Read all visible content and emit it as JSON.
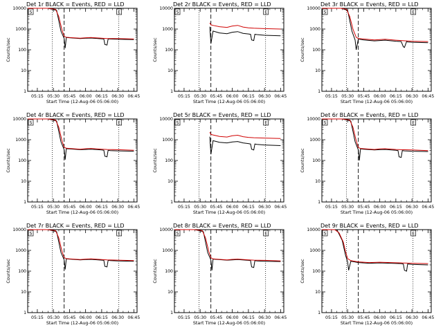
{
  "chart_data": [
    {
      "type": "line",
      "title": "Det 1r BLACK = Events, RED = LLD",
      "xlabel": "Start Time (12-Aug-06 05:06:00)",
      "ylabel": "Counts/sec",
      "yscale": "log",
      "ylim": [
        1,
        10000
      ],
      "xticks": [
        "05:15",
        "05:30",
        "05:45",
        "06:00",
        "06:15",
        "06:30",
        "06:45"
      ],
      "yticks": [
        "1",
        "10",
        "100",
        "1000",
        "10000"
      ],
      "markers": [
        {
          "label": "S",
          "time": "05:06"
        },
        {
          "label": "E",
          "time": "06:31"
        }
      ],
      "series": [
        {
          "color": "#000000",
          "x": [
            "05:06",
            "05:25",
            "05:33",
            "05:37",
            "05:40",
            "05:41",
            "05:42",
            "05:45",
            "05:55",
            "06:00",
            "06:05",
            "06:15",
            "06:17",
            "06:18",
            "06:20",
            "06:21",
            "06:23",
            "06:30",
            "06:45"
          ],
          "y": [
            10000,
            10000,
            8000,
            800,
            350,
            120,
            390,
            380,
            350,
            360,
            370,
            340,
            330,
            180,
            170,
            330,
            330,
            320,
            310
          ]
        },
        {
          "color": "#d00000",
          "x": [
            "05:06",
            "05:25",
            "05:32",
            "05:35",
            "05:38",
            "05:40",
            "05:42",
            "05:45",
            "05:55",
            "06:00",
            "06:05",
            "06:15",
            "06:20",
            "06:30",
            "06:45"
          ],
          "y": [
            10000,
            10000,
            9000,
            4000,
            900,
            450,
            400,
            390,
            360,
            380,
            390,
            360,
            350,
            350,
            330
          ]
        }
      ]
    },
    {
      "type": "line",
      "title": "Det 2r BLACK = Events, RED = LLD",
      "xlabel": "Start Time (12-Aug-06 05:06:00)",
      "ylabel": "Counts/sec",
      "yscale": "log",
      "ylim": [
        1,
        10000
      ],
      "xticks": [
        "05:15",
        "05:30",
        "05:45",
        "06:00",
        "06:15",
        "06:30",
        "06:45"
      ],
      "yticks": [
        "1",
        "10",
        "100",
        "1000",
        "10000"
      ],
      "markers": [
        {
          "label": "S",
          "time": "05:06"
        },
        {
          "label": "E",
          "time": "06:31"
        }
      ],
      "series": [
        {
          "color": "#000000",
          "x": [
            "05:39",
            "05:40",
            "05:42",
            "05:48",
            "05:55",
            "06:00",
            "06:05",
            "06:10",
            "06:15",
            "06:17",
            "06:18",
            "06:20",
            "06:21",
            "06:23",
            "06:30",
            "06:45"
          ],
          "y": [
            1300,
            200,
            800,
            650,
            600,
            700,
            750,
            620,
            580,
            560,
            300,
            280,
            560,
            540,
            500,
            470
          ]
        },
        {
          "color": "#d00000",
          "x": [
            "05:39",
            "05:40",
            "05:42",
            "05:48",
            "05:55",
            "06:00",
            "06:05",
            "06:10",
            "06:15",
            "06:20",
            "06:30",
            "06:45"
          ],
          "y": [
            2000,
            1600,
            1500,
            1300,
            1200,
            1400,
            1500,
            1250,
            1150,
            1100,
            1050,
            1000
          ]
        }
      ]
    },
    {
      "type": "line",
      "title": "Det 3r BLACK = Events, RED = LLD",
      "xlabel": "Start Time (12-Aug-06 05:06:00)",
      "ylabel": "Counts/sec",
      "yscale": "log",
      "ylim": [
        1,
        10000
      ],
      "xticks": [
        "05:15",
        "05:30",
        "05:45",
        "06:00",
        "06:15",
        "06:30",
        "06:45"
      ],
      "yticks": [
        "1",
        "10",
        "100",
        "1000",
        "10000"
      ],
      "markers": [
        {
          "label": "S",
          "time": "05:06"
        },
        {
          "label": "E",
          "time": "06:31"
        }
      ],
      "series": [
        {
          "color": "#000000",
          "x": [
            "05:06",
            "05:24",
            "05:30",
            "05:34",
            "05:37",
            "05:38",
            "05:40",
            "05:45",
            "05:55",
            "06:00",
            "06:05",
            "06:15",
            "06:20",
            "06:22",
            "06:23",
            "06:25",
            "06:26",
            "06:30",
            "06:45"
          ],
          "y": [
            10000,
            10000,
            8000,
            800,
            300,
            100,
            330,
            300,
            270,
            280,
            290,
            260,
            250,
            140,
            130,
            250,
            240,
            230,
            220
          ]
        },
        {
          "color": "#d00000",
          "x": [
            "05:06",
            "05:24",
            "05:29",
            "05:32",
            "05:35",
            "05:38",
            "05:40",
            "05:45",
            "05:55",
            "06:00",
            "06:05",
            "06:15",
            "06:25",
            "06:30",
            "06:45"
          ],
          "y": [
            10000,
            10000,
            9000,
            4000,
            1000,
            400,
            350,
            330,
            300,
            310,
            320,
            290,
            270,
            260,
            250
          ]
        }
      ]
    },
    {
      "type": "line",
      "title": "Det 4r BLACK = Events, RED = LLD",
      "xlabel": "Start Time (12-Aug-06 05:06:00)",
      "ylabel": "Counts/sec",
      "yscale": "log",
      "ylim": [
        1,
        10000
      ],
      "xticks": [
        "05:15",
        "05:30",
        "05:45",
        "06:00",
        "06:15",
        "06:30",
        "06:45"
      ],
      "yticks": [
        "1",
        "10",
        "100",
        "1000",
        "10000"
      ],
      "markers": [
        {
          "label": "S",
          "time": "05:06"
        },
        {
          "label": "E",
          "time": "06:31"
        }
      ],
      "series": [
        {
          "color": "#000000",
          "x": [
            "05:06",
            "05:25",
            "05:33",
            "05:37",
            "05:40",
            "05:41",
            "05:42",
            "05:45",
            "05:55",
            "06:00",
            "06:05",
            "06:15",
            "06:17",
            "06:18",
            "06:20",
            "06:21",
            "06:23",
            "06:30",
            "06:45"
          ],
          "y": [
            10000,
            10000,
            8000,
            800,
            330,
            110,
            370,
            360,
            330,
            340,
            350,
            320,
            310,
            160,
            150,
            310,
            300,
            290,
            280
          ]
        },
        {
          "color": "#d00000",
          "x": [
            "05:06",
            "05:25",
            "05:32",
            "05:35",
            "05:38",
            "05:40",
            "05:42",
            "05:45",
            "05:55",
            "06:00",
            "06:05",
            "06:15",
            "06:20",
            "06:30",
            "06:45"
          ],
          "y": [
            10000,
            10000,
            9000,
            4000,
            900,
            430,
            390,
            380,
            350,
            370,
            380,
            350,
            340,
            330,
            310
          ]
        }
      ]
    },
    {
      "type": "line",
      "title": "Det 5r BLACK = Events, RED = LLD",
      "xlabel": "Start Time (12-Aug-06 05:06:00)",
      "ylabel": "Counts/sec",
      "yscale": "log",
      "ylim": [
        1,
        10000
      ],
      "xticks": [
        "05:15",
        "05:30",
        "05:45",
        "06:00",
        "06:15",
        "06:30",
        "06:45"
      ],
      "yticks": [
        "1",
        "10",
        "100",
        "1000",
        "10000"
      ],
      "markers": [
        {
          "label": "S",
          "time": "05:06"
        },
        {
          "label": "E",
          "time": "06:31"
        }
      ],
      "series": [
        {
          "color": "#000000",
          "x": [
            "05:39",
            "05:40",
            "05:42",
            "05:48",
            "05:55",
            "06:00",
            "06:05",
            "06:10",
            "06:15",
            "06:17",
            "06:18",
            "06:20",
            "06:21",
            "06:23",
            "06:30",
            "06:45"
          ],
          "y": [
            1400,
            200,
            900,
            750,
            700,
            780,
            820,
            700,
            650,
            620,
            350,
            320,
            620,
            600,
            560,
            520
          ]
        },
        {
          "color": "#d00000",
          "x": [
            "05:39",
            "05:40",
            "05:42",
            "05:48",
            "05:55",
            "06:00",
            "06:05",
            "06:10",
            "06:15",
            "06:20",
            "06:30",
            "06:45"
          ],
          "y": [
            2300,
            1800,
            1700,
            1450,
            1350,
            1550,
            1650,
            1400,
            1300,
            1250,
            1200,
            1150
          ]
        }
      ]
    },
    {
      "type": "line",
      "title": "Det 6r BLACK = Events, RED = LLD",
      "xlabel": "Start Time (12-Aug-06 05:06:00)",
      "ylabel": "Counts/sec",
      "yscale": "log",
      "ylim": [
        1,
        10000
      ],
      "xticks": [
        "05:15",
        "05:30",
        "05:45",
        "06:00",
        "06:15",
        "06:30",
        "06:45"
      ],
      "yticks": [
        "1",
        "10",
        "100",
        "1000",
        "10000"
      ],
      "markers": [
        {
          "label": "S",
          "time": "05:06"
        },
        {
          "label": "E",
          "time": "06:31"
        }
      ],
      "series": [
        {
          "color": "#000000",
          "x": [
            "05:06",
            "05:25",
            "05:33",
            "05:37",
            "05:40",
            "05:41",
            "05:42",
            "05:45",
            "05:55",
            "06:00",
            "06:05",
            "06:15",
            "06:17",
            "06:18",
            "06:20",
            "06:21",
            "06:23",
            "06:30",
            "06:45"
          ],
          "y": [
            10000,
            10000,
            8000,
            800,
            320,
            100,
            360,
            350,
            320,
            330,
            340,
            310,
            300,
            150,
            140,
            300,
            290,
            280,
            270
          ]
        },
        {
          "color": "#d00000",
          "x": [
            "05:06",
            "05:25",
            "05:32",
            "05:35",
            "05:38",
            "05:40",
            "05:42",
            "05:45",
            "05:55",
            "06:00",
            "06:05",
            "06:15",
            "06:20",
            "06:30",
            "06:45"
          ],
          "y": [
            10000,
            10000,
            9000,
            4000,
            900,
            420,
            380,
            370,
            340,
            360,
            370,
            340,
            330,
            320,
            300
          ]
        }
      ]
    },
    {
      "type": "line",
      "title": "Det 7r BLACK = Events, RED = LLD",
      "xlabel": "Start Time (12-Aug-06 05:06:00)",
      "ylabel": "Counts/sec",
      "yscale": "log",
      "ylim": [
        1,
        10000
      ],
      "xticks": [
        "05:15",
        "05:30",
        "05:45",
        "06:00",
        "06:15",
        "06:30",
        "06:45"
      ],
      "yticks": [
        "1",
        "10",
        "100",
        "1000",
        "10000"
      ],
      "markers": [
        {
          "label": "S",
          "time": "05:06"
        },
        {
          "label": "E",
          "time": "06:31"
        }
      ],
      "series": [
        {
          "color": "#000000",
          "x": [
            "05:06",
            "05:25",
            "05:33",
            "05:37",
            "05:40",
            "05:41",
            "05:42",
            "05:45",
            "05:55",
            "06:00",
            "06:05",
            "06:15",
            "06:17",
            "06:18",
            "06:20",
            "06:21",
            "06:23",
            "06:30",
            "06:45"
          ],
          "y": [
            10000,
            10000,
            8000,
            800,
            350,
            120,
            390,
            380,
            350,
            360,
            370,
            340,
            330,
            170,
            160,
            330,
            320,
            310,
            300
          ]
        },
        {
          "color": "#d00000",
          "x": [
            "05:06",
            "05:25",
            "05:32",
            "05:35",
            "05:38",
            "05:40",
            "05:42",
            "05:45",
            "05:55",
            "06:00",
            "06:05",
            "06:15",
            "06:20",
            "06:30",
            "06:45"
          ],
          "y": [
            10000,
            10000,
            9000,
            4000,
            900,
            450,
            400,
            390,
            360,
            380,
            390,
            360,
            350,
            340,
            320
          ]
        }
      ]
    },
    {
      "type": "line",
      "title": "Det 8r BLACK = Events, RED = LLD",
      "xlabel": "Start Time (12-Aug-06 05:06:00)",
      "ylabel": "Counts/sec",
      "yscale": "log",
      "ylim": [
        1,
        10000
      ],
      "xticks": [
        "05:15",
        "05:30",
        "05:45",
        "06:00",
        "06:15",
        "06:30",
        "06:45"
      ],
      "yticks": [
        "1",
        "10",
        "100",
        "1000",
        "10000"
      ],
      "markers": [
        {
          "label": "S",
          "time": "05:06"
        },
        {
          "label": "E",
          "time": "06:31"
        }
      ],
      "series": [
        {
          "color": "#000000",
          "x": [
            "05:06",
            "05:25",
            "05:33",
            "05:37",
            "05:40",
            "05:41",
            "05:42",
            "05:45",
            "05:55",
            "06:00",
            "06:05",
            "06:15",
            "06:17",
            "06:18",
            "06:20",
            "06:21",
            "06:23",
            "06:30",
            "06:45"
          ],
          "y": [
            10000,
            10000,
            8000,
            800,
            340,
            110,
            380,
            370,
            340,
            350,
            360,
            330,
            320,
            160,
            150,
            320,
            310,
            300,
            290
          ]
        },
        {
          "color": "#d00000",
          "x": [
            "05:06",
            "05:25",
            "05:32",
            "05:35",
            "05:38",
            "05:40",
            "05:42",
            "05:45",
            "05:55",
            "06:00",
            "06:05",
            "06:15",
            "06:20",
            "06:30",
            "06:45"
          ],
          "y": [
            10000,
            10000,
            9000,
            4000,
            900,
            440,
            390,
            380,
            350,
            370,
            380,
            350,
            340,
            330,
            310
          ]
        }
      ]
    },
    {
      "type": "line",
      "title": "Det 9r BLACK = Events, RED = LLD",
      "xlabel": "Start Time (12-Aug-06 05:06:00)",
      "ylabel": "Counts/sec",
      "yscale": "log",
      "ylim": [
        1,
        10000
      ],
      "xticks": [
        "05:15",
        "05:30",
        "05:45",
        "06:00",
        "06:15",
        "06:30",
        "06:45"
      ],
      "yticks": [
        "1",
        "10",
        "100",
        "1000",
        "10000"
      ],
      "markers": [
        {
          "label": "S",
          "time": "05:06"
        },
        {
          "label": "E",
          "time": "06:31"
        }
      ],
      "series": [
        {
          "color": "#000000",
          "x": [
            "05:06",
            "05:20",
            "05:25",
            "05:28",
            "05:30",
            "05:31",
            "05:33",
            "05:40",
            "05:50",
            "06:00",
            "06:10",
            "06:20",
            "06:22",
            "06:23",
            "06:25",
            "06:26",
            "06:30",
            "06:45"
          ],
          "y": [
            10000,
            10000,
            3000,
            600,
            280,
            110,
            300,
            260,
            240,
            250,
            240,
            230,
            220,
            110,
            100,
            220,
            210,
            200
          ]
        },
        {
          "color": "#d00000",
          "x": [
            "05:06",
            "05:18",
            "05:22",
            "05:26",
            "05:28",
            "05:30",
            "05:33",
            "05:40",
            "05:50",
            "06:00",
            "06:10",
            "06:20",
            "06:30",
            "06:45"
          ],
          "y": [
            10000,
            10000,
            7000,
            2500,
            900,
            400,
            320,
            280,
            260,
            270,
            260,
            250,
            240,
            230
          ]
        }
      ]
    }
  ]
}
